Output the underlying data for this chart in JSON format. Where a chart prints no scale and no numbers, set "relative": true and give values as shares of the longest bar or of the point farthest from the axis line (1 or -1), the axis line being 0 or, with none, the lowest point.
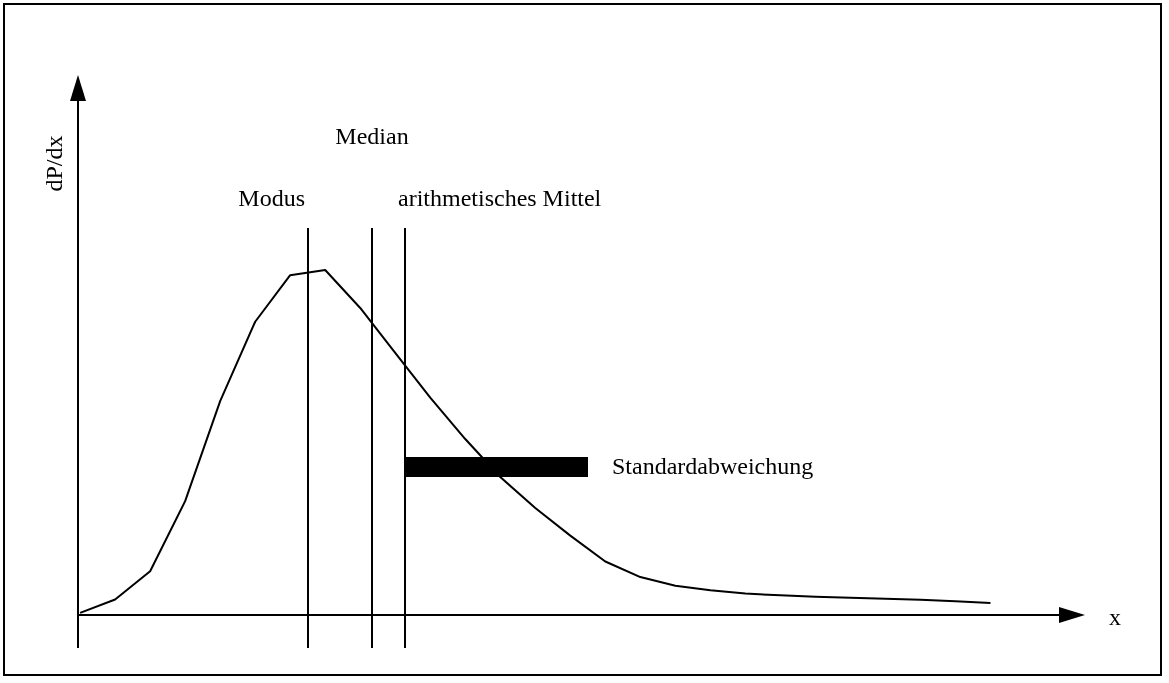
{
  "chart_data": {
    "type": "line",
    "relative": true,
    "xlabel": "x",
    "ylabel": "dP/dx",
    "legend": false,
    "marker": "none",
    "categories": [
      null,
      null,
      null,
      null,
      null,
      null,
      null,
      null,
      null,
      null,
      null,
      null,
      null,
      null,
      null,
      null,
      null,
      null,
      null,
      null,
      null,
      null,
      null,
      null,
      null,
      null,
      null
    ],
    "series": [
      {
        "color": "#000000",
        "values": [
          0.006,
          0.045,
          0.127,
          0.33,
          0.62,
          0.85,
          0.985,
          1,
          0.89,
          0.76,
          0.63,
          0.51,
          0.4,
          0.31,
          0.23,
          0.155,
          0.11,
          0.085,
          0.072,
          0.062,
          0.057,
          0.053,
          0.05,
          0.047,
          0.044,
          0.04,
          0.035
        ]
      }
    ],
    "annotations": [
      "Modus",
      "Median",
      "arithmetisches Mittel",
      "Standardabweichung"
    ]
  }
}
